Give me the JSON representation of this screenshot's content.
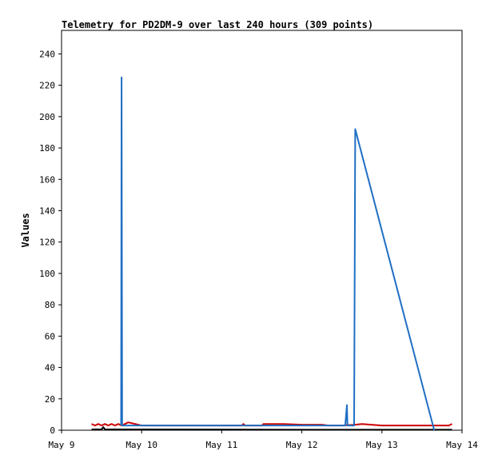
{
  "chart_data": {
    "type": "line",
    "title": "Telemetry for PD2DM-9 over last 240 hours (309 points)",
    "xlabel": "",
    "ylabel": "Values",
    "grid": false,
    "legend": "none",
    "xlim": [
      "2024-05-09 00:00",
      "2024-05-14 00:00"
    ],
    "ylim": [
      0,
      255
    ],
    "x_ticks": [
      {
        "value": "2024-05-09 00:00",
        "label": "May 9"
      },
      {
        "value": "2024-05-10 00:00",
        "label": "May 10"
      },
      {
        "value": "2024-05-11 00:00",
        "label": "May 11"
      },
      {
        "value": "2024-05-12 00:00",
        "label": "May 12"
      },
      {
        "value": "2024-05-13 00:00",
        "label": "May 13"
      },
      {
        "value": "2024-05-14 00:00",
        "label": "May 14"
      }
    ],
    "y_ticks": [
      0,
      20,
      40,
      60,
      80,
      100,
      120,
      140,
      160,
      180,
      200,
      220,
      240
    ],
    "series": [
      {
        "color": "#cc0000",
        "x": [
          "2024-05-09 09:00",
          "2024-05-09 10:00",
          "2024-05-09 11:00",
          "2024-05-09 12:00",
          "2024-05-09 13:00",
          "2024-05-09 14:00",
          "2024-05-09 15:00",
          "2024-05-09 16:00",
          "2024-05-09 17:00",
          "2024-05-09 18:00",
          "2024-05-09 19:00",
          "2024-05-09 20:00",
          "2024-05-10 00:00",
          "2024-05-11 06:00",
          "2024-05-11 06:30",
          "2024-05-11 07:00",
          "2024-05-11 12:00",
          "2024-05-11 12:30",
          "2024-05-11 13:00",
          "2024-05-11 18:00",
          "2024-05-11 18:30",
          "2024-05-12 00:00",
          "2024-05-12 06:00",
          "2024-05-12 08:00",
          "2024-05-12 12:00",
          "2024-05-12 16:00",
          "2024-05-12 18:00",
          "2024-05-13 00:00",
          "2024-05-13 12:00",
          "2024-05-13 18:00",
          "2024-05-13 20:00",
          "2024-05-13 21:00"
        ],
        "y": [
          4,
          3,
          4,
          3,
          4,
          3,
          4,
          3,
          4,
          3,
          4,
          5,
          3,
          3,
          4,
          3,
          3,
          4,
          4,
          4,
          4,
          3.5,
          3.5,
          3,
          3,
          3.5,
          4,
          3,
          3,
          3,
          3,
          4
        ]
      },
      {
        "color": "#000000",
        "x": [
          "2024-05-09 09:00",
          "2024-05-09 12:00",
          "2024-05-09 12:30",
          "2024-05-09 13:00",
          "2024-05-10 00:00",
          "2024-05-12 12:00",
          "2024-05-13 18:00",
          "2024-05-13 21:00"
        ],
        "y": [
          0.5,
          0.5,
          2,
          0.5,
          0.5,
          0.3,
          0.3,
          0.3
        ]
      },
      {
        "color": "#1f6fc4",
        "x": [
          "2024-05-09 17:50",
          "2024-05-09 18:00",
          "2024-05-09 18:10",
          "2024-05-12 13:00",
          "2024-05-12 13:30",
          "2024-05-12 13:40",
          "2024-05-12 15:40",
          "2024-05-12 16:00",
          "2024-05-13 15:40"
        ],
        "y": [
          3,
          225,
          3,
          3,
          16,
          3,
          3,
          192,
          0
        ]
      }
    ]
  }
}
